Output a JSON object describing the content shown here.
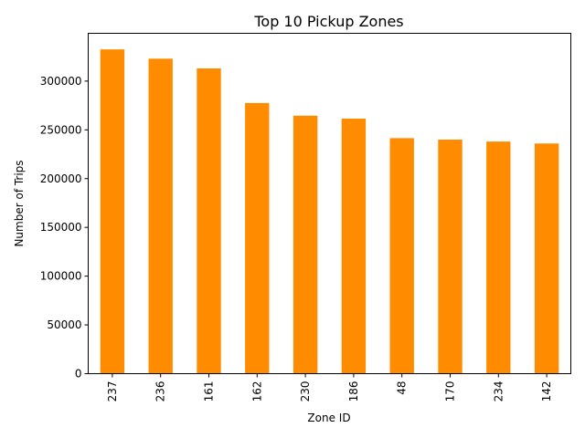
{
  "chart_data": {
    "type": "bar",
    "title": "Top 10 Pickup Zones",
    "xlabel": "Zone ID",
    "ylabel": "Number of Trips",
    "categories": [
      "237",
      "236",
      "161",
      "162",
      "230",
      "186",
      "48",
      "170",
      "234",
      "142"
    ],
    "values": [
      332500,
      323000,
      313000,
      277500,
      264500,
      261500,
      241500,
      240000,
      238000,
      236000
    ],
    "ylim": [
      0,
      349000
    ],
    "yticks": [
      0,
      50000,
      100000,
      150000,
      200000,
      250000,
      300000
    ],
    "bar_color": "#ff8c00",
    "grid": false,
    "legend": "none"
  }
}
